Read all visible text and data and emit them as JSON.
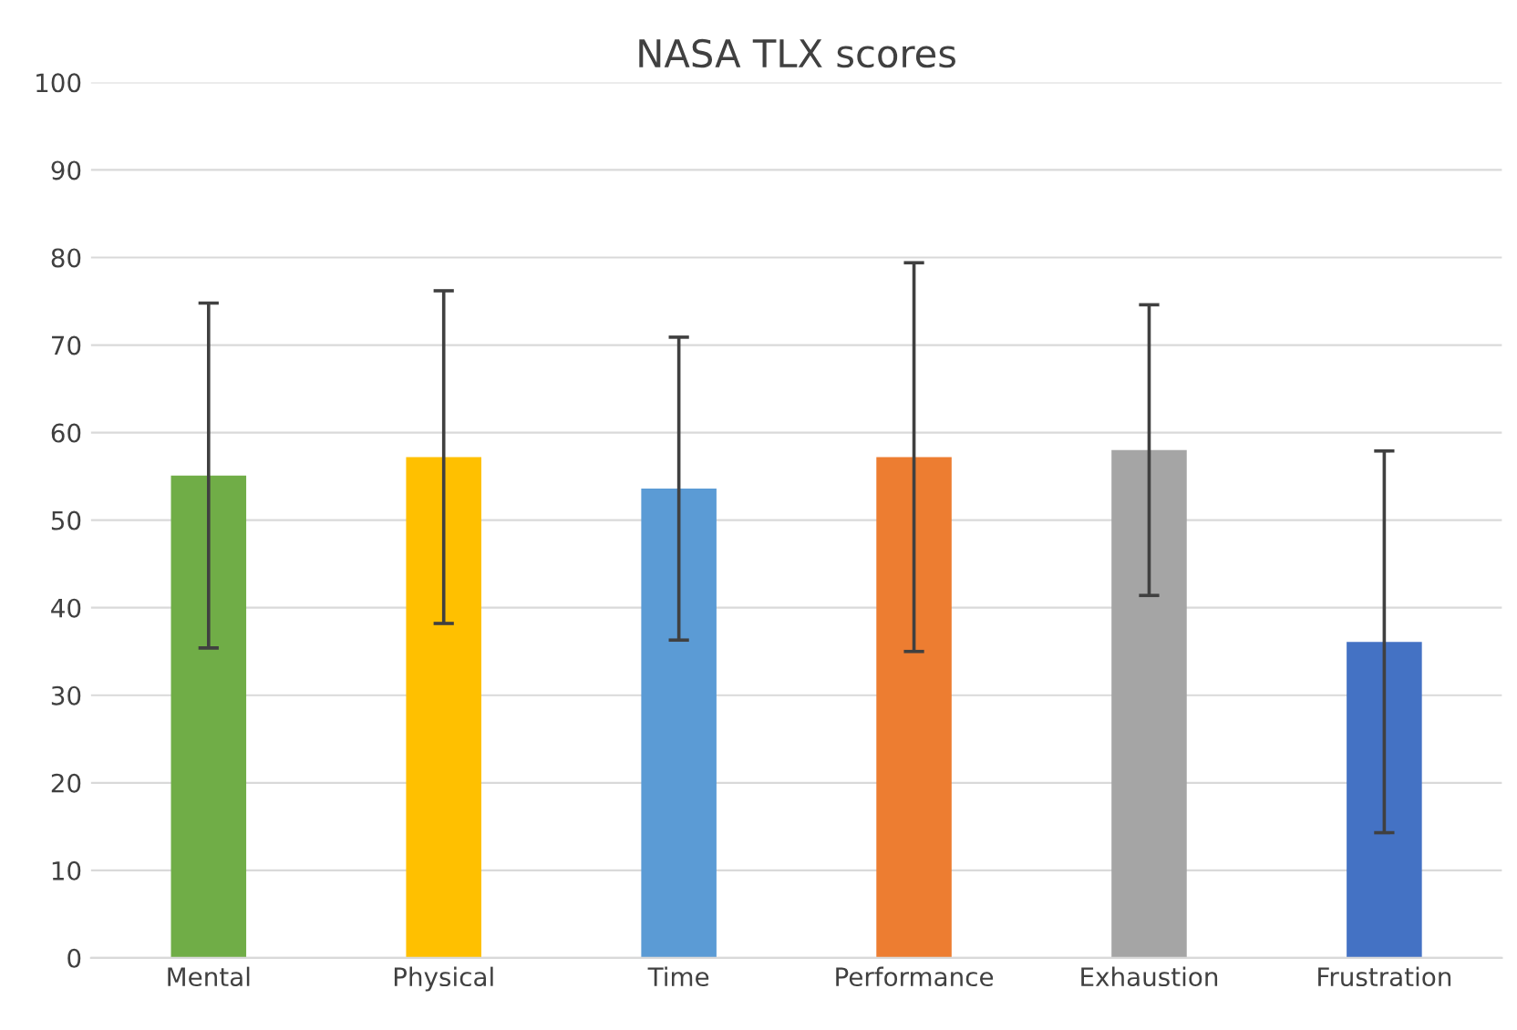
{
  "chart_data": {
    "type": "bar",
    "title": "NASA TLX scores",
    "categories": [
      "Mental",
      "Physical",
      "Time",
      "Performance",
      "Exhaustion",
      "Frustration"
    ],
    "values": [
      55.1,
      57.2,
      53.6,
      57.2,
      58.0,
      36.1
    ],
    "errors": [
      19.7,
      19.0,
      17.3,
      22.2,
      16.6,
      21.8
    ],
    "colors": [
      "#70ad47",
      "#ffc000",
      "#5b9bd5",
      "#ed7d31",
      "#a5a5a5",
      "#4472c4"
    ],
    "ylim": [
      0,
      100
    ],
    "yticks": [
      0,
      10,
      20,
      30,
      40,
      50,
      60,
      70,
      80,
      90,
      100
    ],
    "grid": "y"
  }
}
